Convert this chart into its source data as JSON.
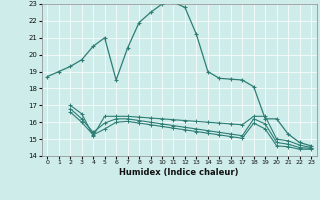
{
  "xlabel": "Humidex (Indice chaleur)",
  "xlim": [
    -0.5,
    23.5
  ],
  "ylim": [
    14,
    23
  ],
  "yticks": [
    14,
    15,
    16,
    17,
    18,
    19,
    20,
    21,
    22,
    23
  ],
  "xticks": [
    0,
    1,
    2,
    3,
    4,
    5,
    6,
    7,
    8,
    9,
    10,
    11,
    12,
    13,
    14,
    15,
    16,
    17,
    18,
    19,
    20,
    21,
    22,
    23
  ],
  "bg_color": "#ceecea",
  "line_color": "#2d7d74",
  "line1_x": [
    0,
    1,
    2,
    3,
    4,
    5,
    6,
    7,
    8,
    9,
    10,
    11,
    12,
    13,
    14,
    15,
    16,
    17,
    18,
    19,
    20,
    21,
    22,
    23
  ],
  "line1_y": [
    18.7,
    19.0,
    19.3,
    19.7,
    20.5,
    21.0,
    18.5,
    20.4,
    21.9,
    22.5,
    23.0,
    23.1,
    22.8,
    21.2,
    19.0,
    18.6,
    18.55,
    18.5,
    18.1,
    16.2,
    16.2,
    15.3,
    14.8,
    14.6
  ],
  "line2_x": [
    2,
    3,
    4,
    5,
    6,
    7,
    8,
    9,
    10,
    11,
    12,
    13,
    14,
    15,
    16,
    17,
    18,
    19,
    20,
    21,
    22,
    23
  ],
  "line2_y": [
    17.0,
    16.5,
    15.2,
    16.35,
    16.35,
    16.35,
    16.3,
    16.25,
    16.2,
    16.15,
    16.1,
    16.05,
    16.0,
    15.95,
    15.9,
    15.85,
    16.35,
    16.35,
    15.0,
    14.9,
    14.65,
    14.5
  ],
  "line3_x": [
    2,
    3,
    4,
    5,
    6,
    7,
    8,
    9,
    10,
    11,
    12,
    13,
    14,
    15,
    16,
    17,
    18,
    19,
    20,
    21,
    22,
    23
  ],
  "line3_y": [
    16.8,
    16.2,
    15.4,
    15.95,
    16.2,
    16.2,
    16.1,
    16.0,
    15.9,
    15.8,
    15.7,
    15.6,
    15.5,
    15.4,
    15.3,
    15.2,
    16.2,
    15.9,
    14.8,
    14.7,
    14.5,
    14.45
  ],
  "line4_x": [
    2,
    3,
    4,
    5,
    6,
    7,
    8,
    9,
    10,
    11,
    12,
    13,
    14,
    15,
    16,
    17,
    18,
    19,
    20,
    21,
    22,
    23
  ],
  "line4_y": [
    16.6,
    16.0,
    15.25,
    15.6,
    16.0,
    16.05,
    15.95,
    15.85,
    15.75,
    15.65,
    15.55,
    15.45,
    15.35,
    15.25,
    15.15,
    15.05,
    15.95,
    15.6,
    14.6,
    14.55,
    14.4,
    14.4
  ]
}
